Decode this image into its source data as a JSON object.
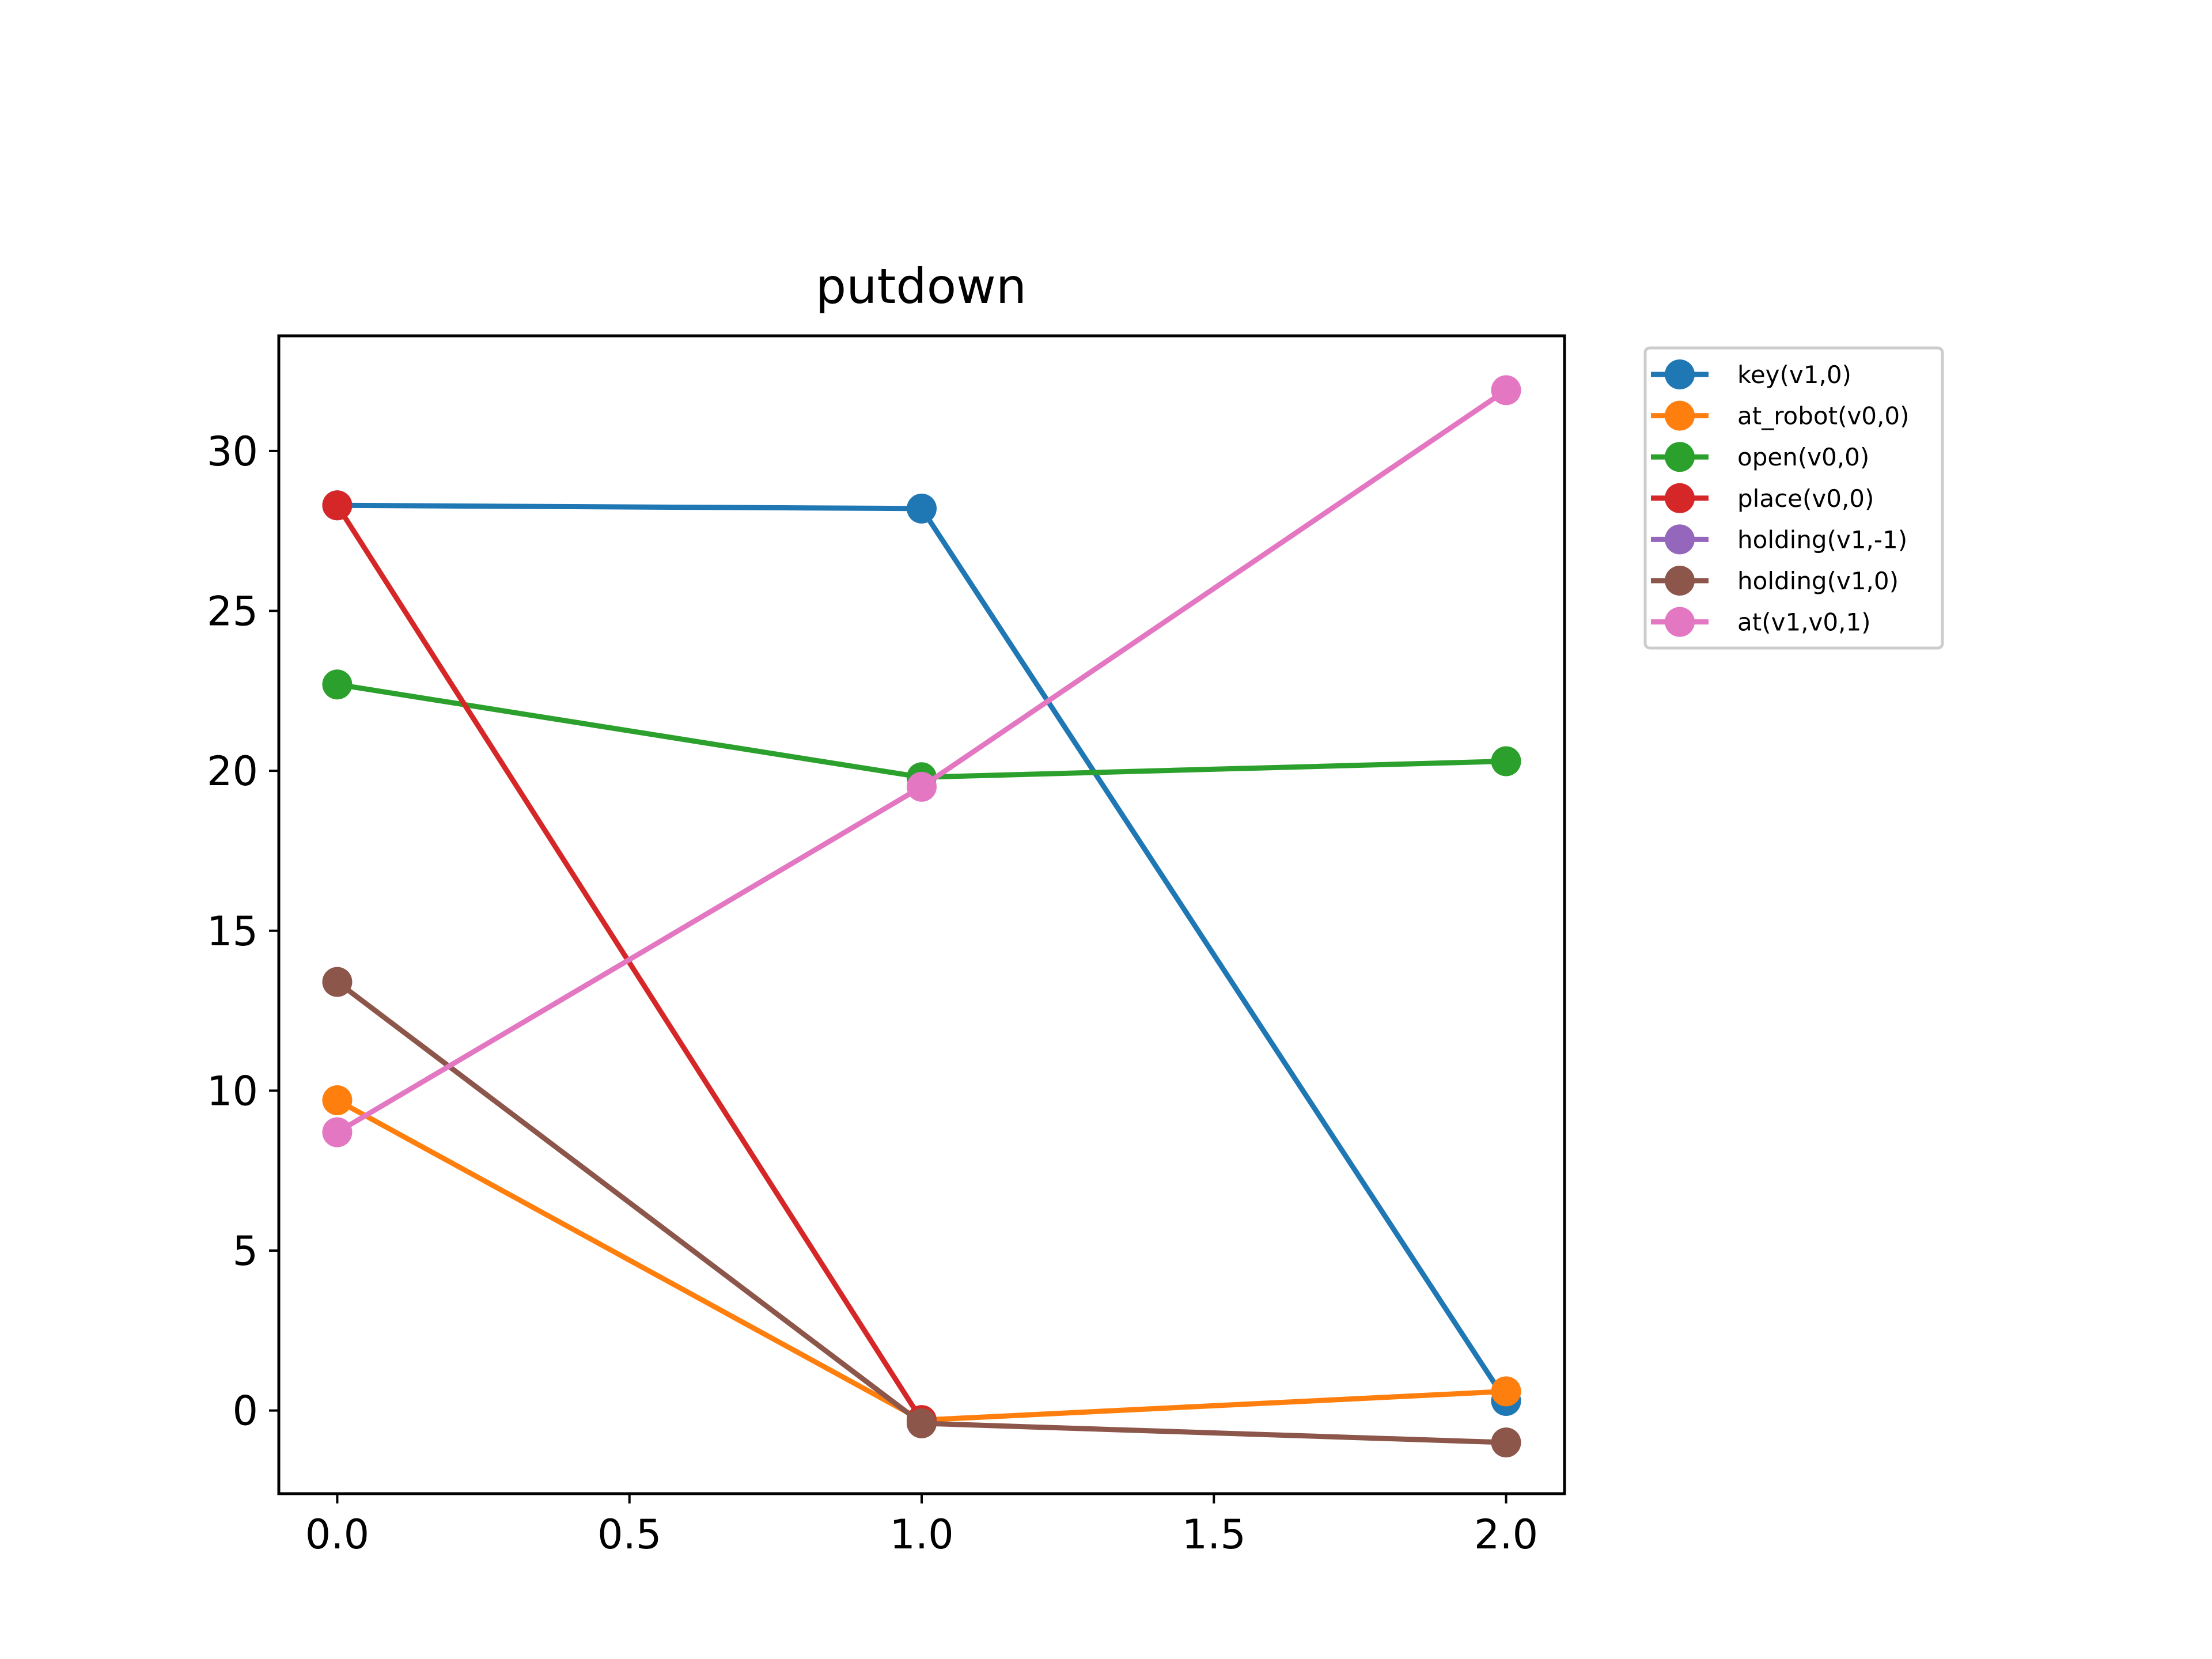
{
  "chart_data": {
    "type": "line",
    "title": "putdown",
    "xlabel": "",
    "ylabel": "",
    "xlim": [
      -0.1,
      2.1
    ],
    "ylim": [
      -2.6,
      33.6
    ],
    "x_ticks": [
      0.0,
      0.5,
      1.0,
      1.5,
      2.0
    ],
    "x_tick_labels": [
      "0.0",
      "0.5",
      "1.0",
      "1.5",
      "2.0"
    ],
    "y_ticks": [
      0,
      5,
      10,
      15,
      20,
      25,
      30
    ],
    "y_tick_labels": [
      "0",
      "5",
      "10",
      "15",
      "20",
      "25",
      "30"
    ],
    "grid": false,
    "legend_position": "outside-top-right",
    "x": [
      0,
      1,
      2
    ],
    "series": [
      {
        "name": "key(v1,0)",
        "color": "#1f77b4",
        "values": [
          28.3,
          28.2,
          0.3
        ]
      },
      {
        "name": "at_robot(v0,0)",
        "color": "#ff7f0e",
        "values": [
          9.7,
          -0.3,
          0.6
        ]
      },
      {
        "name": "open(v0,0)",
        "color": "#2ca02c",
        "values": [
          22.7,
          19.8,
          20.3
        ]
      },
      {
        "name": "place(v0,0)",
        "color": "#d62728",
        "values": [
          28.3,
          -0.3,
          null
        ]
      },
      {
        "name": "holding(v1,-1)",
        "color": "#9467bd",
        "values": [
          null,
          null,
          null
        ]
      },
      {
        "name": "holding(v1,0)",
        "color": "#8c564b",
        "values": [
          13.4,
          -0.4,
          -1.0
        ]
      },
      {
        "name": "at(v1,v0,1)",
        "color": "#e377c2",
        "values": [
          8.7,
          19.5,
          31.9
        ]
      }
    ]
  }
}
